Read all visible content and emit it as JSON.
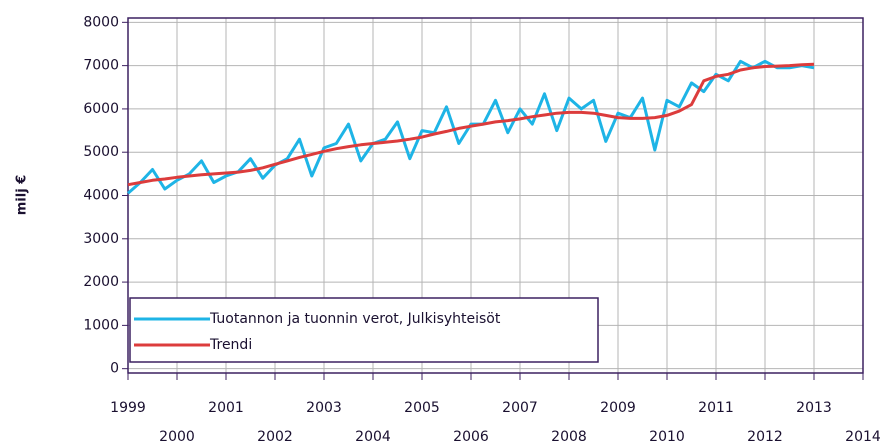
{
  "chart_data": {
    "type": "line",
    "ylabel": "milj €",
    "x": [
      1999,
      1999.25,
      1999.5,
      1999.75,
      2000,
      2000.25,
      2000.5,
      2000.75,
      2001,
      2001.25,
      2001.5,
      2001.75,
      2002,
      2002.25,
      2002.5,
      2002.75,
      2003,
      2003.25,
      2003.5,
      2003.75,
      2004,
      2004.25,
      2004.5,
      2004.75,
      2005,
      2005.25,
      2005.5,
      2005.75,
      2006,
      2006.25,
      2006.5,
      2006.75,
      2007,
      2007.25,
      2007.5,
      2007.75,
      2008,
      2008.25,
      2008.5,
      2008.75,
      2009,
      2009.25,
      2009.5,
      2009.75,
      2010,
      2010.25,
      2010.5,
      2010.75,
      2011,
      2011.25,
      2011.5,
      2011.75,
      2012,
      2012.25,
      2012.5,
      2012.75,
      2013
    ],
    "series": [
      {
        "name": "Tuotannon ja tuonnin verot, Julkisyhteisöt",
        "color": "#1eb4e6",
        "values": [
          4050,
          4300,
          4600,
          4150,
          4350,
          4500,
          4800,
          4300,
          4450,
          4550,
          4850,
          4400,
          4700,
          4850,
          5300,
          4450,
          5100,
          5200,
          5650,
          4800,
          5200,
          5300,
          5700,
          4850,
          5500,
          5450,
          6050,
          5200,
          5650,
          5650,
          6200,
          5450,
          6000,
          5650,
          6350,
          5500,
          6250,
          6000,
          6200,
          5250,
          5900,
          5800,
          6250,
          5050,
          6200,
          6050,
          6600,
          6400,
          6800,
          6650,
          7100,
          6950,
          7100,
          6950,
          6950,
          7000,
          6950
        ]
      },
      {
        "name": "Trendi",
        "color": "#dc3c3c",
        "values": [
          4250,
          4300,
          4350,
          4380,
          4420,
          4450,
          4480,
          4500,
          4520,
          4540,
          4580,
          4640,
          4720,
          4800,
          4880,
          4950,
          5020,
          5080,
          5130,
          5170,
          5200,
          5230,
          5260,
          5300,
          5350,
          5420,
          5480,
          5550,
          5600,
          5650,
          5700,
          5730,
          5770,
          5820,
          5860,
          5900,
          5920,
          5920,
          5900,
          5850,
          5800,
          5780,
          5780,
          5800,
          5850,
          5950,
          6100,
          6650,
          6750,
          6800,
          6900,
          6950,
          6980,
          6990,
          7000,
          7020,
          7030
        ]
      }
    ],
    "xlim": [
      1999,
      2014
    ],
    "xticks": [
      1999,
      2000,
      2001,
      2002,
      2003,
      2004,
      2005,
      2006,
      2007,
      2008,
      2009,
      2010,
      2011,
      2012,
      2013,
      2014
    ],
    "ylim": [
      -100,
      8100
    ],
    "yticks": [
      0,
      1000,
      2000,
      3000,
      4000,
      5000,
      6000,
      7000,
      8000
    ],
    "grid": true,
    "legend": "lower left"
  }
}
